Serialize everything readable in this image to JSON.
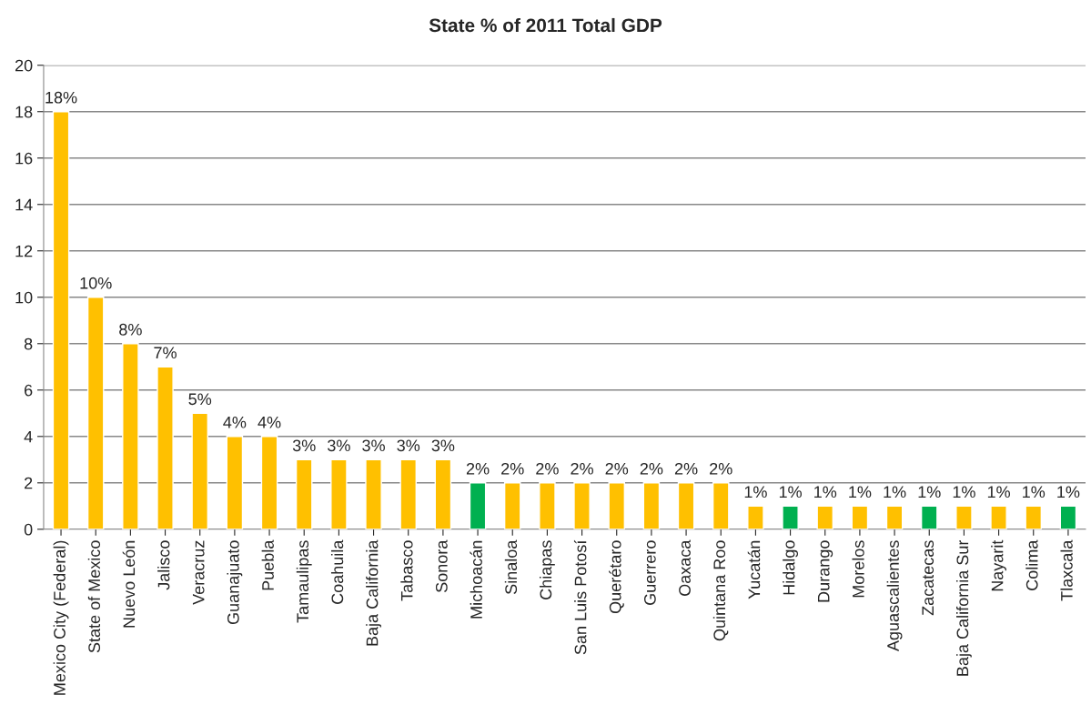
{
  "chart_data": {
    "type": "bar",
    "title": "State % of 2011 Total GDP",
    "categories": [
      "Mexico City (Federal)",
      "State of Mexico",
      "Nuevo León",
      "Jalisco",
      "Veracruz",
      "Guanajuato",
      "Puebla",
      "Tamaulipas",
      "Coahuila",
      "Baja California",
      "Tabasco",
      "Sonora",
      "Michoacán",
      "Sinaloa",
      "Chiapas",
      "San Luis Potosí",
      "Querétaro",
      "Guerrero",
      "Oaxaca",
      "Quintana Roo",
      "Yucatán",
      "Hidalgo",
      "Durango",
      "Morelos",
      "Aguascalientes",
      "Zacatecas",
      "Baja California Sur",
      "Nayarit",
      "Colima",
      "Tlaxcala"
    ],
    "values": [
      18,
      10,
      8,
      7,
      5,
      4,
      4,
      3,
      3,
      3,
      3,
      3,
      2,
      2,
      2,
      2,
      2,
      2,
      2,
      2,
      1,
      1,
      1,
      1,
      1,
      1,
      1,
      1,
      1,
      1
    ],
    "value_labels": [
      "18%",
      "10%",
      "8%",
      "7%",
      "5%",
      "4%",
      "4%",
      "3%",
      "3%",
      "3%",
      "3%",
      "3%",
      "2%",
      "2%",
      "2%",
      "2%",
      "2%",
      "2%",
      "2%",
      "2%",
      "1%",
      "1%",
      "1%",
      "1%",
      "1%",
      "1%",
      "1%",
      "1%",
      "1%",
      "1%"
    ],
    "colors": [
      "#ffc000",
      "#ffc000",
      "#ffc000",
      "#ffc000",
      "#ffc000",
      "#ffc000",
      "#ffc000",
      "#ffc000",
      "#ffc000",
      "#ffc000",
      "#ffc000",
      "#ffc000",
      "#00b050",
      "#ffc000",
      "#ffc000",
      "#ffc000",
      "#ffc000",
      "#ffc000",
      "#ffc000",
      "#ffc000",
      "#ffc000",
      "#00b050",
      "#ffc000",
      "#ffc000",
      "#ffc000",
      "#00b050",
      "#ffc000",
      "#ffc000",
      "#ffc000",
      "#00b050"
    ],
    "ylim": [
      0,
      20
    ],
    "yticks": [
      0,
      2,
      4,
      6,
      8,
      10,
      12,
      14,
      16,
      18,
      20
    ],
    "grid": "y",
    "legend": false
  }
}
